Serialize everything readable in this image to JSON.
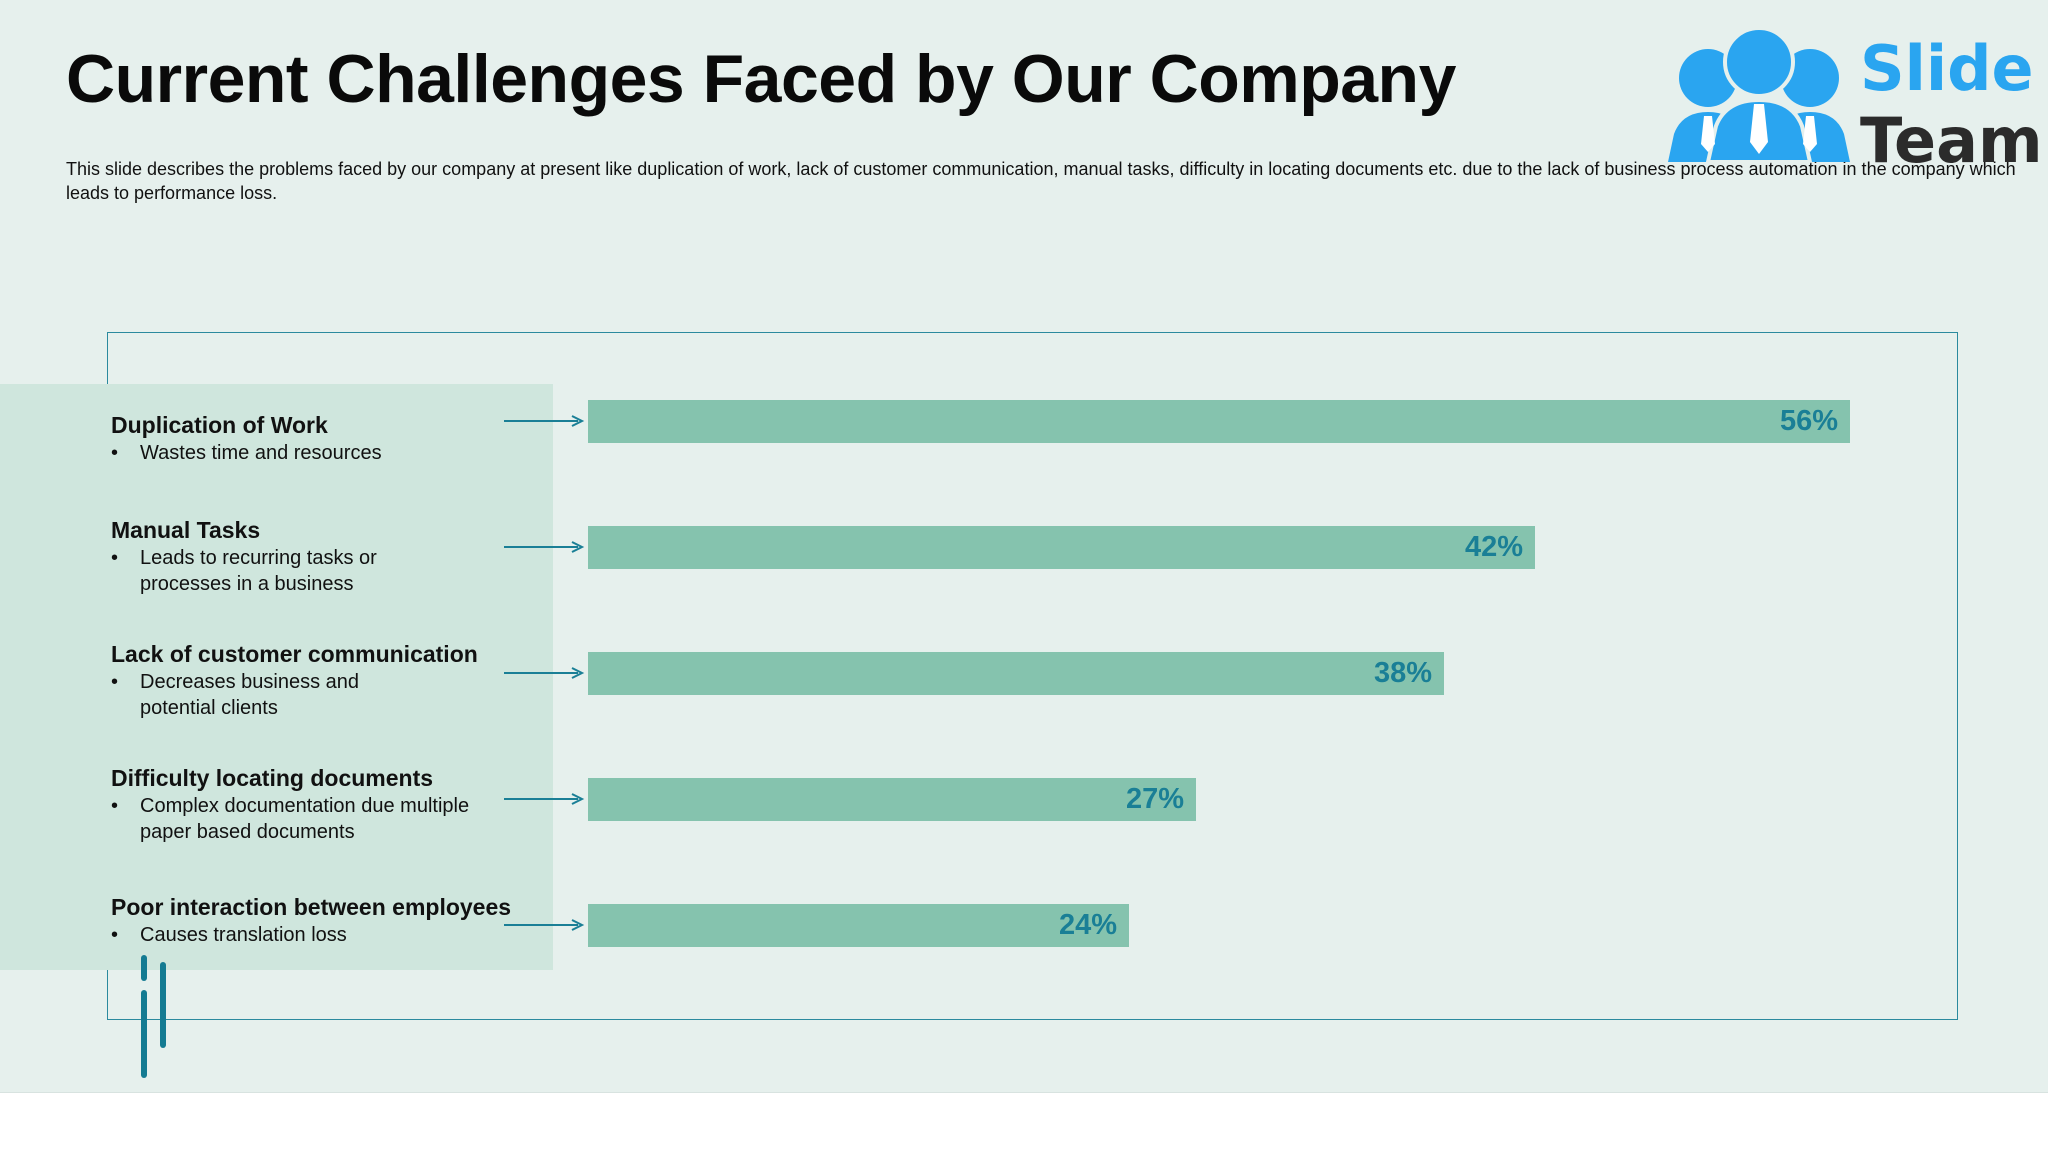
{
  "slide": {
    "title": "Current Challenges Faced by Our Company",
    "description": "This slide describes the problems faced by our company at present like duplication of work, lack of customer communication, manual tasks, difficulty in locating documents etc. due to the lack of business process automation in the company which leads to performance loss."
  },
  "logo": {
    "word1": "Slide",
    "word2": "Team"
  },
  "colors": {
    "background": "#e6f0ed",
    "panel": "#cfe6dd",
    "bar": "#85c3ae",
    "value_text": "#1a7f96",
    "frame": "#2b8a9e",
    "arrow": "#1a7f96",
    "logo_blue": "#2aa5f0"
  },
  "items": [
    {
      "title": "Duplication of Work",
      "bullet": "Wastes time and resources"
    },
    {
      "title": "Manual Tasks",
      "bullet": "Leads to recurring tasks or processes in a business"
    },
    {
      "title": "Lack of customer communication",
      "bullet": "Decreases business and potential clients"
    },
    {
      "title": "Difficulty locating documents",
      "bullet": "Complex documentation due multiple paper based documents"
    },
    {
      "title": "Poor interaction between employees",
      "bullet": "Causes translation loss"
    }
  ],
  "chart_data": {
    "type": "bar",
    "orientation": "horizontal",
    "categories": [
      "Duplication of Work",
      "Manual Tasks",
      "Lack of customer communication",
      "Difficulty locating documents",
      "Poor interaction between employees"
    ],
    "values": [
      56,
      42,
      38,
      27,
      24
    ],
    "value_labels": [
      "56%",
      "42%",
      "38%",
      "27%",
      "24%"
    ],
    "unit": "%",
    "xlim": [
      0,
      56
    ],
    "grid": false,
    "legend": "none"
  }
}
